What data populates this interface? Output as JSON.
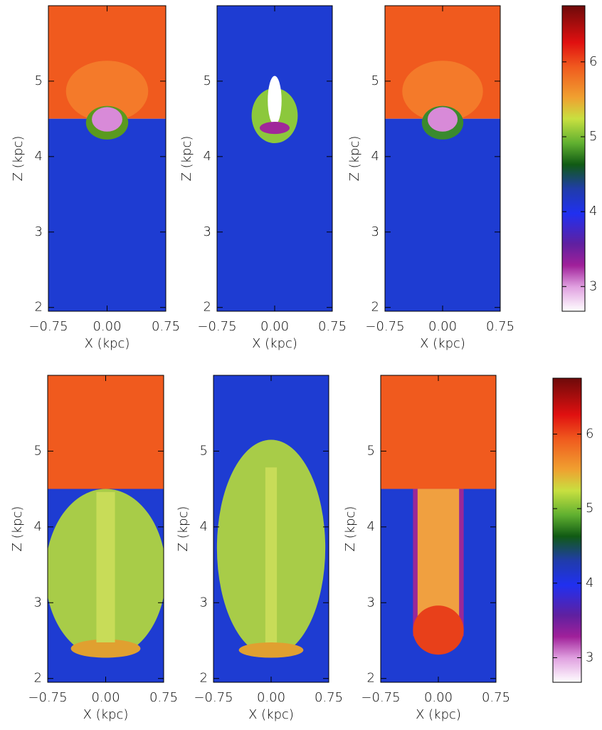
{
  "chart_data": [
    {
      "type": "image",
      "xlabel": "X (kpc)",
      "ylabel": "Z (kpc)",
      "xlim": [
        -0.75,
        0.75
      ],
      "ylim": [
        1.95,
        6.0
      ],
      "xticks": [
        {
          "value": -0.75,
          "label": "−0.75"
        },
        {
          "value": 0,
          "label": "0.00"
        },
        {
          "value": 0.75,
          "label": "0.75"
        }
      ],
      "yticks": [
        2,
        3,
        4,
        5
      ]
    },
    {
      "type": "image",
      "xlabel": "X (kpc)",
      "ylabel": "Z (kpc)",
      "xlim": [
        -0.75,
        0.75
      ],
      "ylim": [
        1.95,
        6.0
      ],
      "xticks": [
        {
          "value": -0.75,
          "label": "−0.75"
        },
        {
          "value": 0,
          "label": "0.00"
        },
        {
          "value": 0.75,
          "label": "0.75"
        }
      ],
      "yticks": [
        2,
        3,
        4,
        5
      ]
    },
    {
      "type": "image",
      "xlabel": "X (kpc)",
      "ylabel": "Z (kpc)",
      "xlim": [
        -0.75,
        0.75
      ],
      "ylim": [
        1.95,
        6.0
      ],
      "xticks": [
        {
          "value": -0.75,
          "label": "−0.75"
        },
        {
          "value": 0,
          "label": "0.00"
        },
        {
          "value": 0.75,
          "label": "0.75"
        }
      ],
      "yticks": [
        2,
        3,
        4,
        5
      ]
    },
    {
      "type": "colorbar",
      "ylim": [
        2.67,
        6.75
      ],
      "yticks": [
        3,
        4,
        5,
        6
      ]
    },
    {
      "type": "image",
      "xlabel": "X (kpc)",
      "ylabel": "Z (kpc)",
      "xlim": [
        -0.75,
        0.75
      ],
      "ylim": [
        1.95,
        6.0
      ],
      "xticks": [
        {
          "value": -0.75,
          "label": "−0.75"
        },
        {
          "value": 0,
          "label": "0.00"
        },
        {
          "value": 0.75,
          "label": "0.75"
        }
      ],
      "yticks": [
        2,
        3,
        4,
        5
      ]
    },
    {
      "type": "image",
      "xlabel": "X (kpc)",
      "ylabel": "Z (kpc)",
      "xlim": [
        -0.75,
        0.75
      ],
      "ylim": [
        1.95,
        6.0
      ],
      "xticks": [
        {
          "value": -0.75,
          "label": "−0.75"
        },
        {
          "value": 0,
          "label": "0.00"
        },
        {
          "value": 0.75,
          "label": "0.75"
        }
      ],
      "yticks": [
        2,
        3,
        4,
        5
      ]
    },
    {
      "type": "image",
      "xlabel": "X (kpc)",
      "ylabel": "Z (kpc)",
      "xlim": [
        -0.75,
        0.75
      ],
      "ylim": [
        1.95,
        6.0
      ],
      "xticks": [
        {
          "value": -0.75,
          "label": "−0.75"
        },
        {
          "value": 0,
          "label": "0.00"
        },
        {
          "value": 0.75,
          "label": "0.75"
        }
      ],
      "yticks": [
        2,
        3,
        4,
        5
      ]
    },
    {
      "type": "colorbar",
      "ylim": [
        2.67,
        6.75
      ],
      "yticks": [
        3,
        4,
        5,
        6
      ]
    }
  ]
}
